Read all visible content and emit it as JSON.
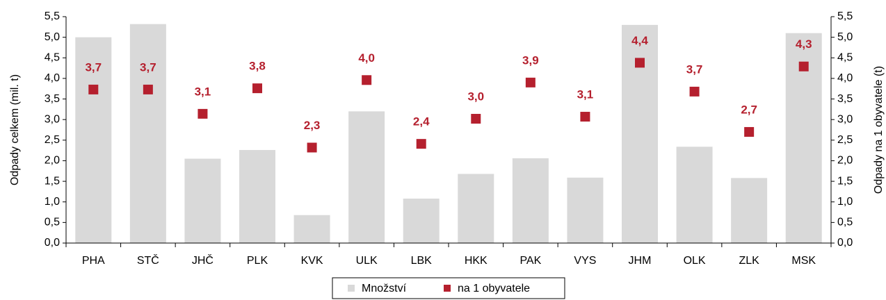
{
  "chart_data": {
    "type": "bar",
    "categories": [
      "PHA",
      "STČ",
      "JHČ",
      "PLK",
      "KVK",
      "ULK",
      "LBK",
      "HKK",
      "PAK",
      "VYS",
      "JHM",
      "OLK",
      "ZLK",
      "MSK"
    ],
    "ylabel": "Odpady celkem (mil. t)",
    "y2label": "Odpady na 1 obyvatele (t)",
    "series": [
      {
        "name": "Množství",
        "type": "bar",
        "color": "#d9d9d9",
        "values": [
          5.0,
          5.32,
          2.05,
          2.26,
          0.68,
          3.2,
          1.08,
          1.68,
          2.06,
          1.59,
          5.3,
          2.34,
          1.58,
          5.1
        ]
      },
      {
        "name": "na 1 obyvatele",
        "type": "scatter",
        "axis": "y2",
        "color": "#b5202e",
        "values": [
          3.73,
          3.73,
          3.14,
          3.76,
          2.32,
          3.96,
          2.41,
          3.02,
          3.9,
          3.07,
          4.38,
          3.68,
          2.7,
          4.29
        ],
        "value_labels": [
          "3,7",
          "3,7",
          "3,1",
          "3,8",
          "2,3",
          "4,0",
          "2,4",
          "3,0",
          "3,9",
          "3,1",
          "4,4",
          "3,7",
          "2,7",
          "4,3"
        ]
      }
    ],
    "ylim": [
      0,
      5.5
    ],
    "yticks": [
      {
        "value": 0,
        "label": "0,0"
      },
      {
        "value": 0.5,
        "label": "0,5"
      },
      {
        "value": 1,
        "label": "1,0"
      },
      {
        "value": 1.5,
        "label": "1,5"
      },
      {
        "value": 2,
        "label": "2,0"
      },
      {
        "value": 2.5,
        "label": "2,5"
      },
      {
        "value": 3,
        "label": "3,0"
      },
      {
        "value": 3.5,
        "label": "3,5"
      },
      {
        "value": 4,
        "label": "4,0"
      },
      {
        "value": 4.5,
        "label": "4,5"
      },
      {
        "value": 5,
        "label": "5,0"
      },
      {
        "value": 5.5,
        "label": "5,5"
      }
    ],
    "y2lim": [
      0,
      5.5
    ],
    "y2ticks": [
      {
        "value": 0,
        "label": "0,0"
      },
      {
        "value": 0.5,
        "label": "0,5"
      },
      {
        "value": 1,
        "label": "1,0"
      },
      {
        "value": 1.5,
        "label": "1,5"
      },
      {
        "value": 2,
        "label": "2,0"
      },
      {
        "value": 2.5,
        "label": "2,5"
      },
      {
        "value": 3,
        "label": "3,0"
      },
      {
        "value": 3.5,
        "label": "3,5"
      },
      {
        "value": 4,
        "label": "4,0"
      },
      {
        "value": 4.5,
        "label": "4,5"
      },
      {
        "value": 5,
        "label": "5,0"
      },
      {
        "value": 5.5,
        "label": "5,5"
      }
    ],
    "legend": "bottom"
  }
}
